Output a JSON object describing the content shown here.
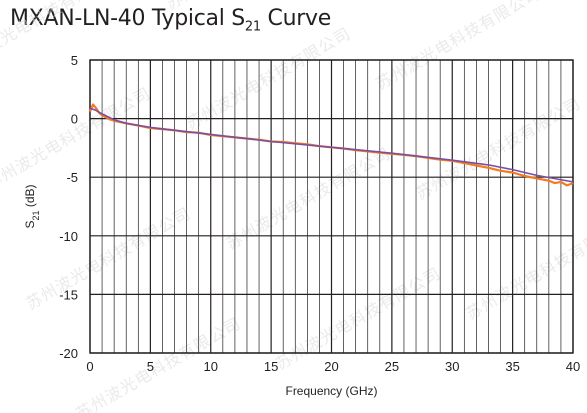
{
  "title": {
    "main": "MXAN-LN-40 Typical S",
    "sub": "21",
    "suffix": " Curve"
  },
  "watermark": "苏州波光电科技有限公司",
  "colors": {
    "measured": "#f47a20",
    "fit": "#7a4fa3",
    "grid": "#231f20",
    "text": "#231f20"
  },
  "chart_data": {
    "type": "line",
    "title": "MXAN-LN-40 Typical S21 Curve",
    "xlabel": "Frequency (GHz)",
    "ylabel": "S21 (dB)",
    "xlim": [
      0,
      40
    ],
    "ylim": [
      -20,
      5
    ],
    "x_ticks": [
      0,
      5,
      10,
      15,
      20,
      25,
      30,
      35,
      40
    ],
    "y_ticks": [
      5,
      0,
      -5,
      -10,
      -15,
      -20
    ],
    "x_minor_step": 1,
    "grid": true,
    "series": [
      {
        "role": "measured",
        "color": "#f47a20",
        "x": [
          0,
          0.25,
          0.5,
          0.75,
          1,
          1.5,
          2,
          2.5,
          3,
          4,
          5,
          6,
          7,
          8,
          9,
          10,
          11,
          12,
          13,
          14,
          15,
          16,
          17,
          18,
          19,
          20,
          21,
          22,
          23,
          24,
          25,
          26,
          27,
          28,
          29,
          30,
          31,
          32,
          33,
          34,
          35,
          36,
          37,
          38,
          38.5,
          39,
          39.5,
          40
        ],
        "y": [
          0.6,
          1.2,
          0.9,
          0.5,
          0.3,
          0.0,
          -0.2,
          -0.3,
          -0.4,
          -0.6,
          -0.8,
          -0.9,
          -1.0,
          -1.15,
          -1.2,
          -1.4,
          -1.5,
          -1.6,
          -1.7,
          -1.8,
          -1.95,
          -2.0,
          -2.1,
          -2.2,
          -2.35,
          -2.45,
          -2.55,
          -2.7,
          -2.8,
          -2.9,
          -3.0,
          -3.1,
          -3.2,
          -3.35,
          -3.5,
          -3.6,
          -3.8,
          -4.0,
          -4.2,
          -4.45,
          -4.6,
          -4.9,
          -5.1,
          -5.3,
          -5.5,
          -5.4,
          -5.7,
          -5.5
        ]
      },
      {
        "role": "fit",
        "color": "#7a4fa3",
        "x": [
          0,
          0.5,
          1,
          2,
          3,
          5,
          10,
          15,
          20,
          25,
          30,
          33,
          35,
          37,
          40
        ],
        "y": [
          0.9,
          0.7,
          0.4,
          -0.1,
          -0.4,
          -0.75,
          -1.35,
          -1.95,
          -2.45,
          -2.95,
          -3.55,
          -3.95,
          -4.35,
          -4.85,
          -5.4
        ]
      }
    ]
  }
}
